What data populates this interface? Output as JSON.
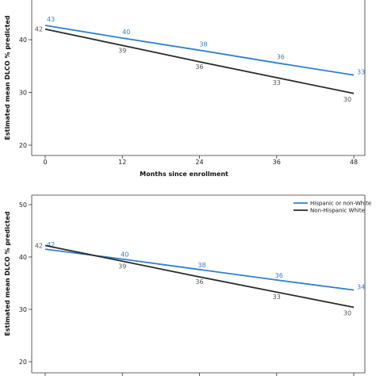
{
  "colors": {
    "series_a": "#2f7fd0",
    "series_b": "#2b2b2b",
    "label_b": "#555555",
    "axis": "#333333"
  },
  "chart_data": [
    {
      "type": "line",
      "ylabel": "Estimated mean DLCO % predicted",
      "xlabel": "Months since enrollment",
      "x": [
        0,
        12,
        24,
        36,
        48
      ],
      "xticks": [
        "0",
        "12",
        "24",
        "36",
        "48"
      ],
      "yticks": [
        "20",
        "30",
        "40"
      ],
      "ylim": [
        19,
        50
      ],
      "xlim": [
        0,
        48
      ],
      "grid": false,
      "legend": false,
      "series": [
        {
          "values": [
            42.7,
            40.3,
            38.0,
            35.6,
            33.3
          ],
          "labels": [
            "43",
            "40",
            "38",
            "36",
            "33"
          ],
          "color": "#2f7fd0"
        },
        {
          "values": [
            42.0,
            38.9,
            35.8,
            32.8,
            29.8
          ],
          "labels": [
            "42",
            "39",
            "36",
            "33",
            "30"
          ],
          "color": "#2b2b2b"
        }
      ]
    },
    {
      "type": "line",
      "ylabel": "Estimated mean DLCO % predicted",
      "xlabel": "",
      "x": [
        0,
        12,
        24,
        36,
        48
      ],
      "xticks": [
        "",
        "",
        "",
        "",
        ""
      ],
      "yticks": [
        "20",
        "30",
        "40",
        "50"
      ],
      "ylim": [
        20,
        51
      ],
      "xlim": [
        0,
        48
      ],
      "grid": false,
      "legend": "top-right",
      "series": [
        {
          "name": "Hispanic or non-White",
          "values": [
            41.5,
            39.6,
            37.6,
            35.6,
            33.7
          ],
          "labels": [
            "42",
            "40",
            "38",
            "36",
            "34"
          ],
          "color": "#2f7fd0"
        },
        {
          "name": "Non-Hispanic White",
          "values": [
            42.2,
            39.2,
            36.2,
            33.3,
            30.4
          ],
          "labels": [
            "42",
            "39",
            "36",
            "33",
            "30"
          ],
          "color": "#2b2b2b"
        }
      ]
    }
  ]
}
